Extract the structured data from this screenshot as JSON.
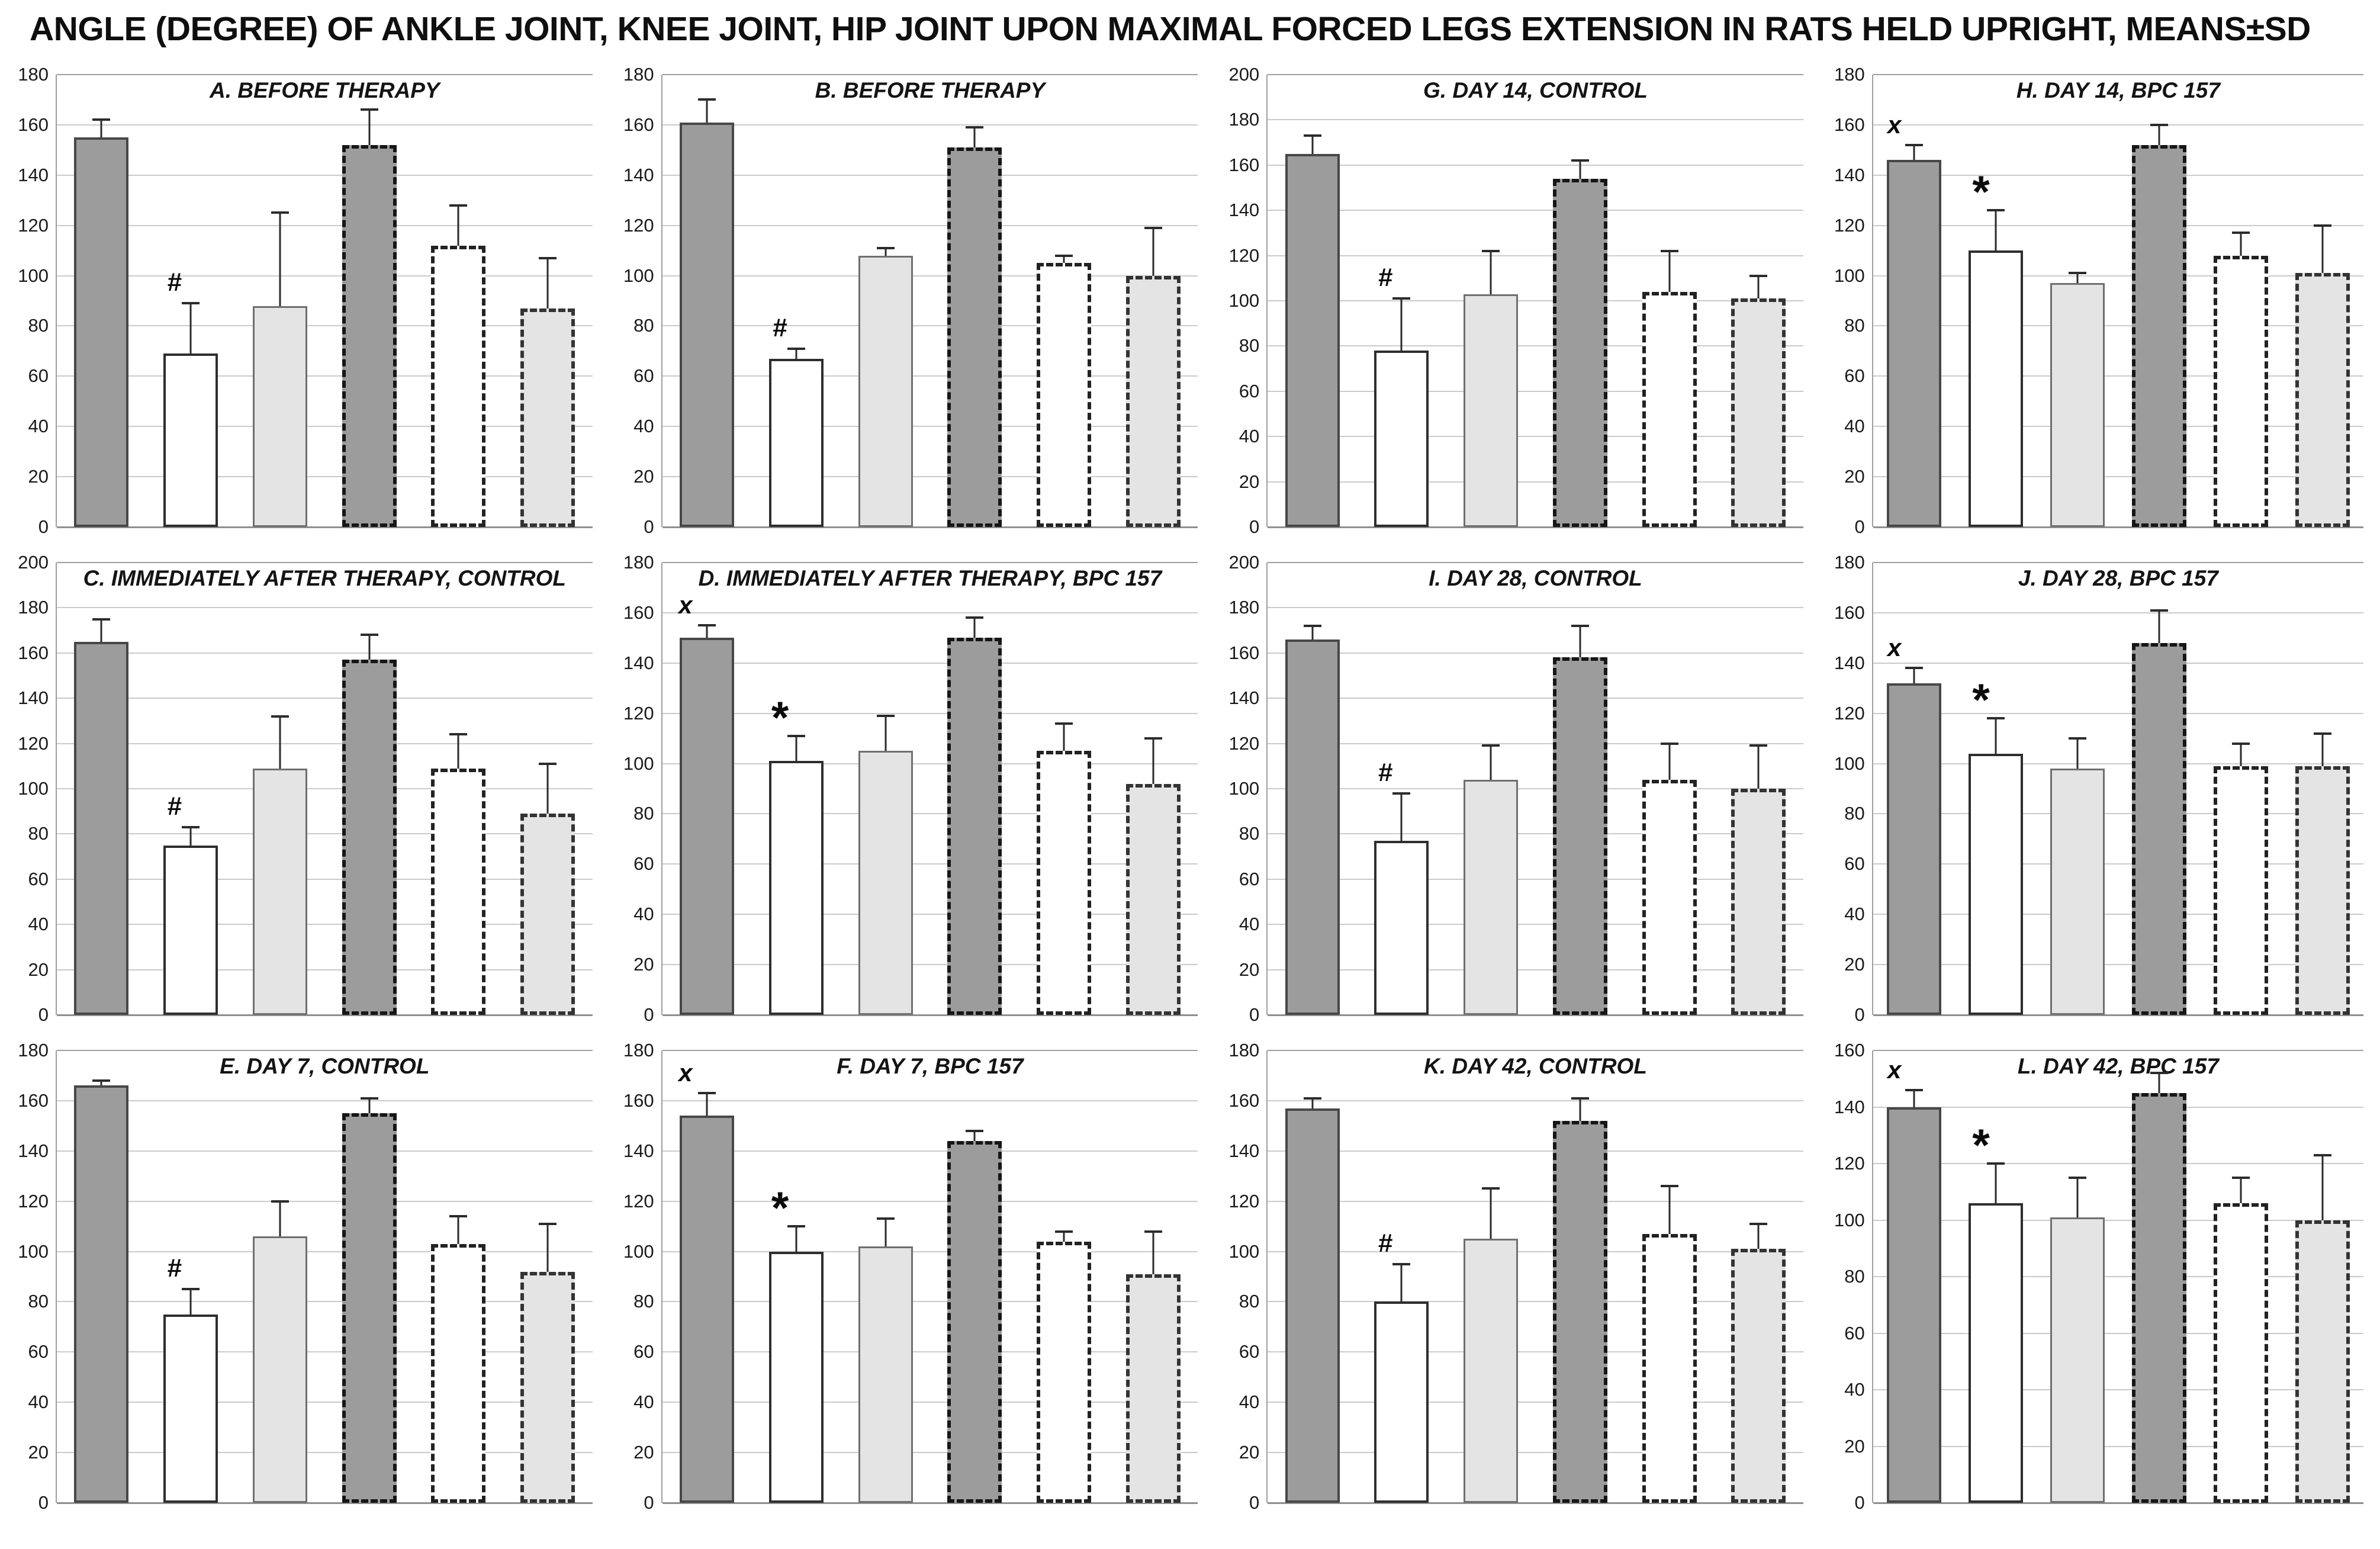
{
  "chart_data": {
    "type": "bar",
    "title": "ANGLE (DEGREE) OF ANKLE JOINT, KNEE JOINT, HIP JOINT UPON MAXIMAL FORCED LEGS EXTENSION IN RATS HELD UPRIGHT, MEANS±SD",
    "layout": {
      "columns": 4,
      "rows": 3,
      "legend": "none",
      "grid_on": true
    },
    "ytick_interval": 20,
    "bar_group_labels": [
      "solid-dark-gray",
      "solid-white",
      "solid-light-gray",
      "dashed-dark-gray",
      "dashed-white",
      "dashed-light-gray"
    ],
    "bar_styles": [
      {
        "name": "solid-dark-gray",
        "class": "bs-solid-dark"
      },
      {
        "name": "solid-white",
        "class": "bs-solid-white"
      },
      {
        "name": "solid-light-gray",
        "class": "bs-solid-light"
      },
      {
        "name": "dashed-dark-gray",
        "class": "bs-dashed-dark"
      },
      {
        "name": "dashed-white",
        "class": "bs-dashed-white"
      },
      {
        "name": "dashed-light-gray",
        "class": "bs-dashed-light"
      }
    ],
    "panels": [
      {
        "id": "A",
        "title": "A. BEFORE THERAPY",
        "ylim": [
          0,
          180
        ],
        "values": [
          155,
          69,
          88,
          152,
          112,
          87
        ],
        "sd": [
          7,
          20,
          37,
          14,
          16,
          20
        ],
        "markers": [
          "",
          "#",
          "",
          "",
          "",
          ""
        ]
      },
      {
        "id": "B",
        "title": "B. BEFORE THERAPY",
        "ylim": [
          0,
          180
        ],
        "values": [
          161,
          67,
          108,
          151,
          105,
          100
        ],
        "sd": [
          9,
          4,
          3,
          8,
          3,
          19
        ],
        "markers": [
          "",
          "#",
          "",
          "",
          "",
          ""
        ]
      },
      {
        "id": "G",
        "title": "G. DAY 14,  CONTROL",
        "ylim": [
          0,
          200
        ],
        "values": [
          165,
          78,
          103,
          154,
          104,
          101
        ],
        "sd": [
          8,
          23,
          19,
          8,
          18,
          10
        ],
        "markers": [
          "",
          "#",
          "",
          "",
          "",
          ""
        ]
      },
      {
        "id": "H",
        "title": "H. DAY 14,  BPC 157",
        "ylim": [
          0,
          180
        ],
        "values": [
          146,
          110,
          97,
          152,
          108,
          101
        ],
        "sd": [
          6,
          16,
          4,
          8,
          9,
          19
        ],
        "markers": [
          "x",
          "*",
          "",
          "",
          "",
          ""
        ]
      },
      {
        "id": "C",
        "title": "C. IMMEDIATELY AFTER THERAPY,  CONTROL",
        "ylim": [
          0,
          200
        ],
        "values": [
          165,
          75,
          109,
          157,
          109,
          89
        ],
        "sd": [
          10,
          8,
          23,
          11,
          15,
          22
        ],
        "markers": [
          "",
          "#",
          "",
          "",
          "",
          ""
        ]
      },
      {
        "id": "D",
        "title": "D. IMMEDIATELY AFTER THERAPY, BPC 157",
        "ylim": [
          0,
          180
        ],
        "values": [
          150,
          101,
          105,
          150,
          105,
          92
        ],
        "sd": [
          5,
          10,
          14,
          8,
          11,
          18
        ],
        "markers": [
          "x",
          "*",
          "",
          "",
          "",
          ""
        ]
      },
      {
        "id": "I",
        "title": "I. DAY 28,  CONTROL",
        "ylim": [
          0,
          200
        ],
        "values": [
          166,
          77,
          104,
          158,
          104,
          100
        ],
        "sd": [
          6,
          21,
          15,
          14,
          16,
          19
        ],
        "markers": [
          "",
          "#",
          "",
          "",
          "",
          ""
        ]
      },
      {
        "id": "J",
        "title": "J. DAY 28,  BPC 157",
        "ylim": [
          0,
          180
        ],
        "values": [
          132,
          104,
          98,
          148,
          99,
          99
        ],
        "sd": [
          6,
          14,
          12,
          13,
          9,
          13
        ],
        "markers": [
          "x",
          "*",
          "",
          "",
          "",
          ""
        ]
      },
      {
        "id": "E",
        "title": "E. DAY 7,  CONTROL",
        "ylim": [
          0,
          180
        ],
        "values": [
          166,
          75,
          106,
          155,
          103,
          92
        ],
        "sd": [
          2,
          10,
          14,
          6,
          11,
          19
        ],
        "markers": [
          "",
          "#",
          "",
          "",
          "",
          ""
        ]
      },
      {
        "id": "F",
        "title": "F. DAY 7,  BPC 157",
        "ylim": [
          0,
          180
        ],
        "values": [
          154,
          100,
          102,
          144,
          104,
          91
        ],
        "sd": [
          9,
          10,
          11,
          4,
          4,
          17
        ],
        "markers": [
          "x",
          "*",
          "",
          "",
          "",
          ""
        ]
      },
      {
        "id": "K",
        "title": "K. DAY 42,  CONTROL",
        "ylim": [
          0,
          180
        ],
        "values": [
          157,
          80,
          105,
          152,
          107,
          101
        ],
        "sd": [
          4,
          15,
          20,
          9,
          19,
          10
        ],
        "markers": [
          "",
          "#",
          "",
          "",
          "",
          ""
        ]
      },
      {
        "id": "L",
        "title": "L. DAY 42,  BPC 157",
        "ylim": [
          0,
          160
        ],
        "values": [
          140,
          106,
          101,
          145,
          106,
          100
        ],
        "sd": [
          6,
          14,
          14,
          7,
          9,
          23
        ],
        "markers": [
          "x",
          "*",
          "",
          "",
          "",
          ""
        ]
      }
    ],
    "colors": {
      "bar_dark_fill": "#9c9c9c",
      "bar_white_fill": "#ffffff",
      "bar_light_fill": "#e4e4e4",
      "solid_border": "#474747",
      "dashed_border": "#161616",
      "gridline": "#cbcbcb",
      "axis_line": "#9f9f9f",
      "error_bar": "#2b2b2b",
      "text": "#0f0f0f",
      "background": "#ffffff"
    }
  }
}
